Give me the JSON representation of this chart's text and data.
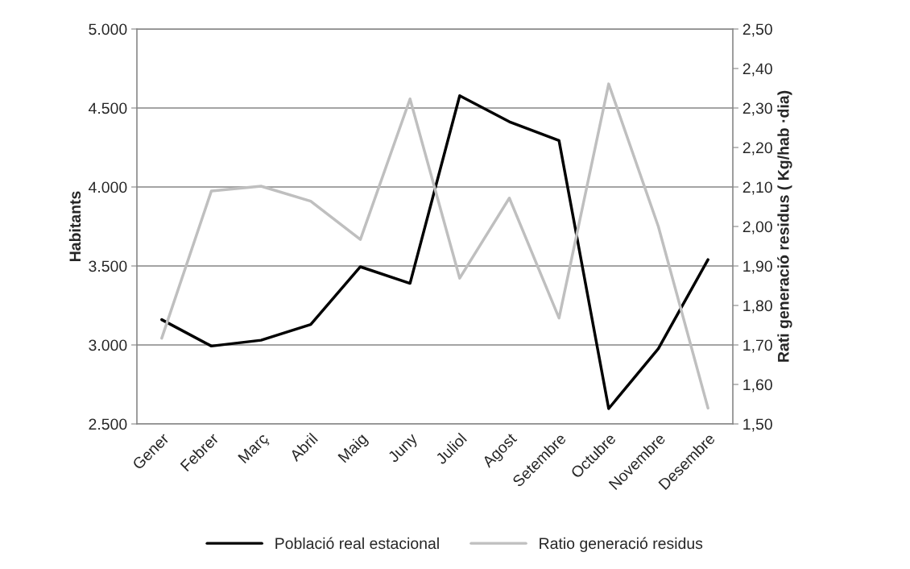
{
  "chart_data": {
    "type": "line",
    "categories": [
      "Gener",
      "Febrer",
      "Març",
      "Abril",
      "Maig",
      "Juny",
      "Juliol",
      "Agost",
      "Setembre",
      "Octubre",
      "Novembre",
      "Desembre"
    ],
    "series": [
      {
        "name": "Població real estacional",
        "color": "#000000",
        "values": [
          3160,
          2993,
          3030,
          3129,
          3495,
          3390,
          4578,
          4413,
          4294,
          2597,
          2976,
          3540
        ]
      },
      {
        "name": "Ratio generació residus",
        "color": "#bfbfbf",
        "axis": "y2",
        "values": [
          1.717,
          2.09,
          2.102,
          2.064,
          1.967,
          2.323,
          1.869,
          2.072,
          1.768,
          2.361,
          2.0,
          1.54
        ]
      }
    ],
    "ylabel": "Habitants",
    "y2label": "Rati generació residus ( Kg/hab ·dia)",
    "ylim": [
      2500,
      5000
    ],
    "yticks": [
      {
        "value": 2500,
        "label": "2.500"
      },
      {
        "value": 3000,
        "label": "3.000"
      },
      {
        "value": 3500,
        "label": "3.500"
      },
      {
        "value": 4000,
        "label": "4.000"
      },
      {
        "value": 4500,
        "label": "4.500"
      },
      {
        "value": 5000,
        "label": "5.000"
      }
    ],
    "y2lim": [
      1.5,
      2.5
    ],
    "y2ticks": [
      {
        "value": 1.5,
        "label": "1,50"
      },
      {
        "value": 1.6,
        "label": "1,60"
      },
      {
        "value": 1.7,
        "label": "1,70"
      },
      {
        "value": 1.8,
        "label": "1,80"
      },
      {
        "value": 1.9,
        "label": "1,90"
      },
      {
        "value": 2.0,
        "label": "2,00"
      },
      {
        "value": 2.1,
        "label": "2,10"
      },
      {
        "value": 2.2,
        "label": "2,20"
      },
      {
        "value": 2.3,
        "label": "2,30"
      },
      {
        "value": 2.4,
        "label": "2,40"
      },
      {
        "value": 2.5,
        "label": "2,50"
      }
    ],
    "grid": "y",
    "legend": "bottom",
    "marker": "none",
    "line_style": "solid"
  }
}
